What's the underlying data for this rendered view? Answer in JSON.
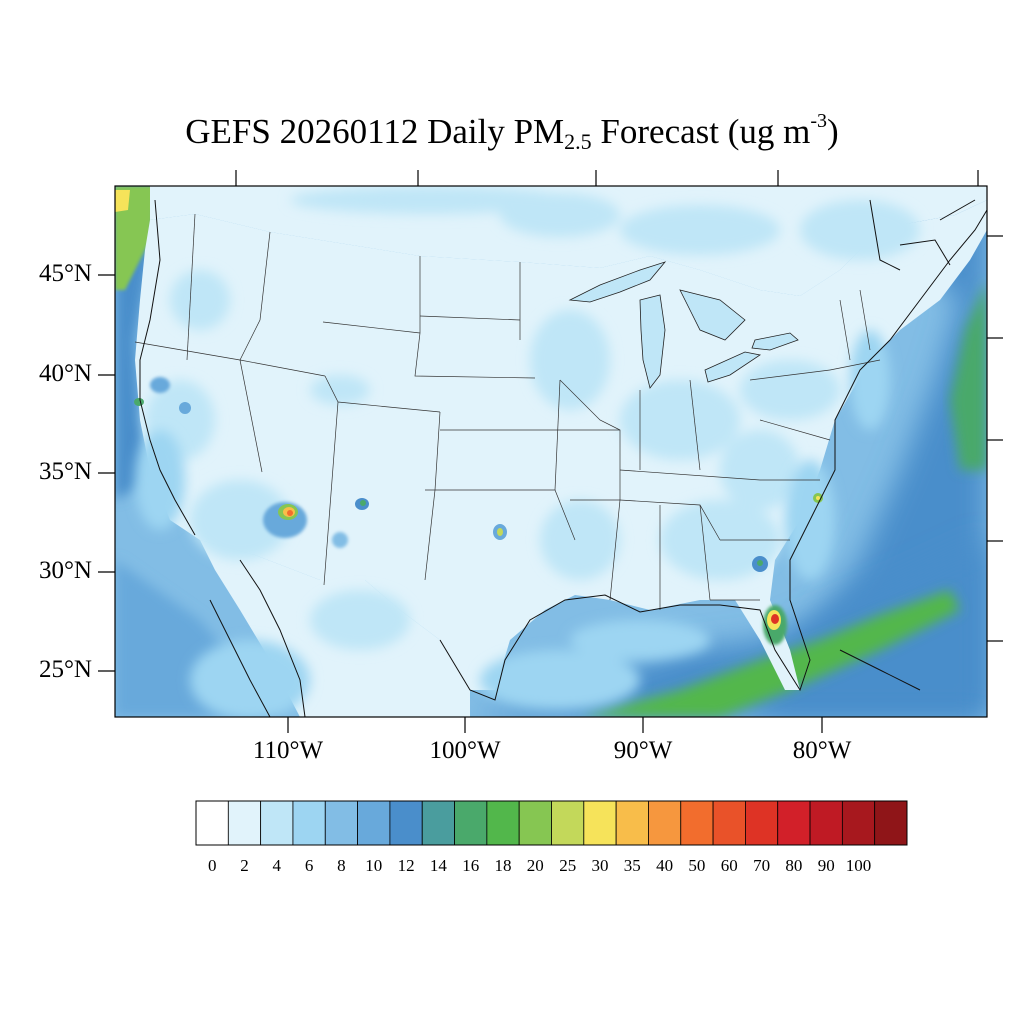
{
  "title": {
    "prefix": "GEFS 20260112 Daily PM",
    "subscript": "2.5",
    "middle": " Forecast (ug m",
    "superscript": "-3",
    "suffix": ")"
  },
  "map": {
    "projection": "lambert-conformal",
    "region": "CONUS",
    "variable": "PM2.5",
    "lat_labels": [
      "45°N",
      "40°N",
      "35°N",
      "30°N",
      "25°N"
    ],
    "lon_labels": [
      "110°W",
      "100°W",
      "90°W",
      "80°W"
    ],
    "background_level": "2-4",
    "ocean_levels": "8-12",
    "hotspots": [
      {
        "location": "Phoenix AZ",
        "max_bin": "40-50"
      },
      {
        "location": "Central New Mexico",
        "max_bin": "14-16"
      },
      {
        "location": "Oklahoma",
        "max_bin": "20-25"
      },
      {
        "location": "Tampa FL",
        "max_bin": "60-70"
      },
      {
        "location": "Jacksonville FL",
        "max_bin": "14-16"
      },
      {
        "location": "Coastal North Carolina",
        "max_bin": "25-30"
      },
      {
        "location": "Northern California",
        "max_bin": "16-18"
      }
    ]
  },
  "colorbar": {
    "labels": [
      "0",
      "2",
      "4",
      "6",
      "8",
      "10",
      "12",
      "14",
      "16",
      "18",
      "20",
      "25",
      "30",
      "35",
      "40",
      "50",
      "60",
      "70",
      "80",
      "90",
      "100"
    ],
    "colors": [
      "#ffffff",
      "#e1f3fb",
      "#bfe6f7",
      "#9dd5f2",
      "#82bde5",
      "#68a9db",
      "#4a8ecb",
      "#4a9d9e",
      "#4aa96b",
      "#52b74b",
      "#86c652",
      "#c3d85a",
      "#f6e35a",
      "#f8bd4a",
      "#f6973e",
      "#f26d2d",
      "#e95229",
      "#de3325",
      "#d22029",
      "#bf1a24",
      "#a7181e",
      "#8f1518"
    ]
  }
}
